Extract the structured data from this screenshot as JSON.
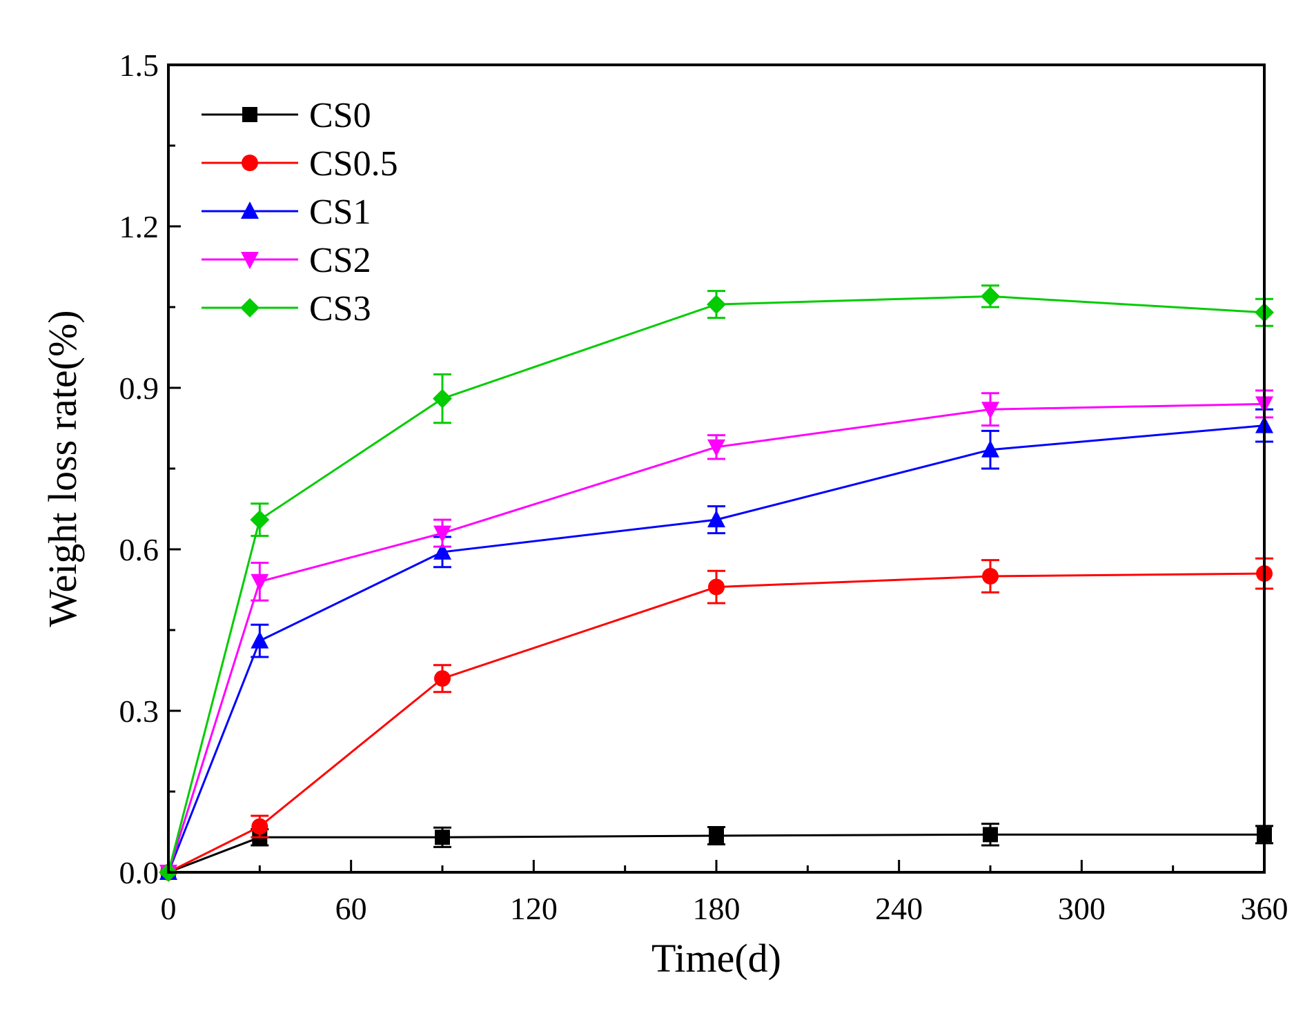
{
  "chart_data": {
    "type": "line",
    "title": "",
    "xlabel": "Time(d)",
    "ylabel": "Weight loss rate(%)",
    "xlim": [
      0,
      360
    ],
    "ylim": [
      0,
      1.5
    ],
    "xticks": [
      "0",
      "60",
      "120",
      "180",
      "240",
      "300",
      "360"
    ],
    "yticks": [
      "0.0",
      "0.3",
      "0.6",
      "0.9",
      "1.2",
      "1.5"
    ],
    "grid": false,
    "legend_position": "top-left",
    "x": [
      0,
      30,
      90,
      180,
      270,
      360
    ],
    "series": [
      {
        "name": "CS0",
        "color": "#000000",
        "marker": "square",
        "values": [
          0,
          0.065,
          0.065,
          0.068,
          0.07,
          0.07
        ],
        "errors": [
          0,
          0.015,
          0.018,
          0.016,
          0.02,
          0.016
        ]
      },
      {
        "name": "CS0.5",
        "color": "#ff0000",
        "marker": "circle",
        "values": [
          0,
          0.085,
          0.36,
          0.53,
          0.55,
          0.555
        ],
        "errors": [
          0,
          0.02,
          0.025,
          0.03,
          0.03,
          0.028
        ]
      },
      {
        "name": "CS1",
        "color": "#0000ff",
        "marker": "triangle-up",
        "values": [
          0,
          0.43,
          0.595,
          0.655,
          0.785,
          0.83
        ],
        "errors": [
          0,
          0.03,
          0.028,
          0.025,
          0.035,
          0.03
        ]
      },
      {
        "name": "CS2",
        "color": "#ff00ff",
        "marker": "triangle-down",
        "values": [
          0,
          0.54,
          0.63,
          0.79,
          0.86,
          0.87
        ],
        "errors": [
          0,
          0.035,
          0.025,
          0.022,
          0.03,
          0.025
        ]
      },
      {
        "name": "CS3",
        "color": "#00cc00",
        "marker": "diamond",
        "values": [
          0,
          0.655,
          0.88,
          1.055,
          1.07,
          1.04
        ],
        "errors": [
          0,
          0.03,
          0.045,
          0.025,
          0.02,
          0.025
        ]
      }
    ]
  }
}
